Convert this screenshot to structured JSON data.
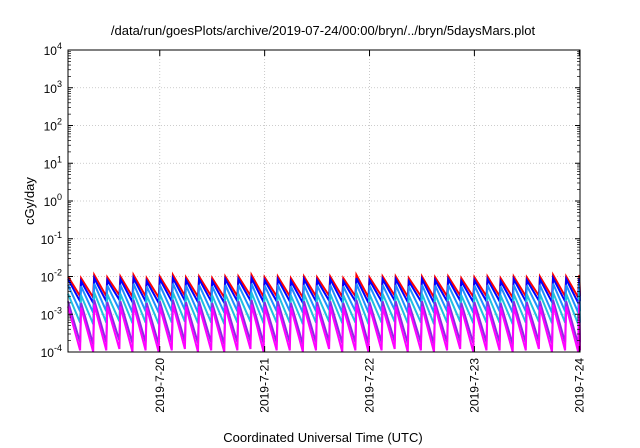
{
  "chart_data": {
    "type": "line",
    "title": "/data/run/goesPlots/archive/2019-07-24/00:00/bryn/../bryn/5daysMars.plot",
    "xlabel": "Coordinated Universal Time (UTC)",
    "ylabel": "cGy/day",
    "yscale": "log",
    "ylim": [
      0.0001,
      10000
    ],
    "xlim": [
      "2019-07-19 03:00",
      "2019-07-24 00:10"
    ],
    "grid": true,
    "legend": "none",
    "x_ticks": [
      "2019-7-20",
      "2019-7-21",
      "2019-7-22",
      "2019-7-23",
      "2019-7-24"
    ],
    "y_ticks": [
      {
        "base": "10",
        "exp": "-4"
      },
      {
        "base": "10",
        "exp": "-3"
      },
      {
        "base": "10",
        "exp": "-2"
      },
      {
        "base": "10",
        "exp": "-1"
      },
      {
        "base": "10",
        "exp": "0"
      },
      {
        "base": "10",
        "exp": "1"
      },
      {
        "base": "10",
        "exp": "2"
      },
      {
        "base": "10",
        "exp": "3"
      },
      {
        "base": "10",
        "exp": "4"
      }
    ],
    "sawtooth_period_hours": 3,
    "series": [
      {
        "color": "#ff0000",
        "peaks": [
          0.01,
          0.009,
          0.011,
          0.0095,
          0.01,
          0.011,
          0.009,
          0.01,
          0.011,
          0.0095,
          0.01,
          0.009,
          0.01,
          0.01,
          0.011,
          0.0095,
          0.01,
          0.009,
          0.01,
          0.0095,
          0.01,
          0.009,
          0.011,
          0.0095,
          0.01,
          0.01,
          0.009,
          0.01,
          0.0095,
          0.01,
          0.009,
          0.0095,
          0.01,
          0.009,
          0.01,
          0.0095,
          0.01,
          0.011,
          0.01,
          0.011
        ],
        "troughs": [
          0.003,
          0.0028,
          0.003,
          0.0032,
          0.0029,
          0.003,
          0.0028,
          0.003,
          0.0031,
          0.0029,
          0.003,
          0.0028,
          0.003,
          0.0031,
          0.0029,
          0.003,
          0.003,
          0.0028,
          0.003,
          0.0031,
          0.0029,
          0.003,
          0.0028,
          0.003,
          0.0031,
          0.0029,
          0.003,
          0.0028,
          0.003,
          0.0031,
          0.0029,
          0.003,
          0.003,
          0.0028,
          0.003,
          0.0031,
          0.0029,
          0.003,
          0.0028,
          0.003
        ]
      },
      {
        "color": "#0000ff",
        "peaks": [
          0.0085,
          0.0075,
          0.009,
          0.008,
          0.0085,
          0.009,
          0.0075,
          0.0085,
          0.009,
          0.008,
          0.0085,
          0.0075,
          0.0085,
          0.0085,
          0.009,
          0.008,
          0.0085,
          0.0075,
          0.0085,
          0.008,
          0.0085,
          0.0075,
          0.009,
          0.008,
          0.0085,
          0.0085,
          0.0075,
          0.0085,
          0.008,
          0.0085,
          0.0075,
          0.008,
          0.0085,
          0.0075,
          0.0085,
          0.008,
          0.0085,
          0.009,
          0.0085,
          0.009
        ],
        "troughs": [
          0.0022,
          0.002,
          0.0022,
          0.0024,
          0.0021,
          0.0022,
          0.002,
          0.0022,
          0.0023,
          0.0021,
          0.0022,
          0.002,
          0.0022,
          0.0023,
          0.0021,
          0.0022,
          0.0022,
          0.002,
          0.0022,
          0.0023,
          0.0021,
          0.0022,
          0.002,
          0.0022,
          0.0023,
          0.0021,
          0.0022,
          0.002,
          0.0022,
          0.0023,
          0.0021,
          0.0022,
          0.0022,
          0.002,
          0.0022,
          0.0023,
          0.0021,
          0.0022,
          0.002,
          0.0022
        ]
      },
      {
        "color": "#1e90ff",
        "peaks": [
          0.006,
          0.0055,
          0.0065,
          0.0058,
          0.006,
          0.0065,
          0.0055,
          0.006,
          0.0065,
          0.0058,
          0.006,
          0.0055,
          0.006,
          0.006,
          0.0065,
          0.0058,
          0.006,
          0.0055,
          0.006,
          0.0058,
          0.006,
          0.0055,
          0.0065,
          0.0058,
          0.006,
          0.006,
          0.0055,
          0.006,
          0.0058,
          0.006,
          0.0055,
          0.0058,
          0.006,
          0.0055,
          0.006,
          0.0058,
          0.006,
          0.0065,
          0.006,
          0.0065
        ],
        "troughs": [
          0.0012,
          0.0011,
          0.0012,
          0.0013,
          0.0011,
          0.0012,
          0.0011,
          0.0012,
          0.0013,
          0.0011,
          0.0012,
          0.0011,
          0.0012,
          0.0013,
          0.0011,
          0.0012,
          0.0012,
          0.0011,
          0.0012,
          0.0013,
          0.0011,
          0.0012,
          0.0011,
          0.0012,
          0.0013,
          0.0011,
          0.0012,
          0.0011,
          0.0012,
          0.0013,
          0.0011,
          0.0012,
          0.0012,
          0.0011,
          0.0012,
          0.0013,
          0.0011,
          0.0012,
          0.0011,
          0.0012
        ]
      },
      {
        "color": "#20c0e0",
        "peaks": [
          0.0035,
          0.0032,
          0.0038,
          0.0034,
          0.0035,
          0.0038,
          0.0032,
          0.0035,
          0.0038,
          0.0034,
          0.0035,
          0.0032,
          0.0035,
          0.0035,
          0.0038,
          0.0034,
          0.0035,
          0.0032,
          0.0035,
          0.0034,
          0.0035,
          0.0032,
          0.0038,
          0.0034,
          0.0035,
          0.0035,
          0.0032,
          0.0035,
          0.0034,
          0.0035,
          0.0032,
          0.0034,
          0.0035,
          0.0032,
          0.0035,
          0.0034,
          0.0035,
          0.0038,
          0.0035,
          0.0038
        ],
        "troughs": [
          0.0006,
          0.00055,
          0.0006,
          0.00065,
          0.00058,
          0.0006,
          0.00055,
          0.0006,
          0.00063,
          0.00058,
          0.0006,
          0.00055,
          0.0006,
          0.00063,
          0.00058,
          0.0006,
          0.0006,
          0.00055,
          0.0006,
          0.00063,
          0.00058,
          0.0006,
          0.00055,
          0.0006,
          0.00063,
          0.00058,
          0.0006,
          0.00055,
          0.0006,
          0.00063,
          0.00058,
          0.0006,
          0.0006,
          0.00055,
          0.0006,
          0.00063,
          0.00058,
          0.0006,
          0.00055,
          0.0006
        ]
      },
      {
        "color": "#8a2be2",
        "peaks": [
          0.0022,
          0.002,
          0.0024,
          0.0021,
          0.0022,
          0.0024,
          0.002,
          0.0022,
          0.0024,
          0.0021,
          0.0022,
          0.002,
          0.0022,
          0.0022,
          0.0024,
          0.0021,
          0.0022,
          0.002,
          0.0022,
          0.0021,
          0.0022,
          0.002,
          0.0024,
          0.0021,
          0.0022,
          0.0022,
          0.002,
          0.0022,
          0.0021,
          0.0022,
          0.002,
          0.0021,
          0.0022,
          0.002,
          0.0022,
          0.0021,
          0.0022,
          0.0024,
          0.0022,
          0.0024
        ],
        "troughs": [
          0.00018,
          0.00016,
          0.00018,
          0.0002,
          0.00017,
          0.00018,
          0.00016,
          0.00018,
          0.00019,
          0.00017,
          0.00018,
          0.00016,
          0.00018,
          0.00019,
          0.00017,
          0.00018,
          0.00018,
          0.00016,
          0.00018,
          0.00019,
          0.00017,
          0.00018,
          0.00016,
          0.00018,
          0.00019,
          0.00017,
          0.00018,
          0.00016,
          0.00018,
          0.00019,
          0.00017,
          0.00018,
          0.00018,
          0.00016,
          0.00018,
          0.00019,
          0.00017,
          0.00018,
          0.00016,
          0.00018
        ]
      },
      {
        "color": "#ff00ff",
        "peaks": [
          0.0016,
          0.0015,
          0.0018,
          0.0016,
          0.0016,
          0.0018,
          0.0015,
          0.0016,
          0.0018,
          0.0016,
          0.0016,
          0.0015,
          0.0016,
          0.0016,
          0.0018,
          0.0016,
          0.0016,
          0.0015,
          0.0016,
          0.0016,
          0.0016,
          0.0015,
          0.0018,
          0.0016,
          0.0016,
          0.0016,
          0.0015,
          0.0016,
          0.0016,
          0.0016,
          0.0015,
          0.0016,
          0.0016,
          0.0015,
          0.0016,
          0.0016,
          0.0016,
          0.0018,
          0.0016,
          0.0018
        ],
        "troughs": [
          0.00011,
          0.0001,
          0.00011,
          0.00012,
          0.0001,
          0.00011,
          0.0001,
          0.00011,
          0.00012,
          0.0001,
          0.00011,
          0.0001,
          0.00011,
          0.00012,
          0.0001,
          0.00011,
          0.00011,
          0.0001,
          0.00011,
          0.00012,
          0.0001,
          0.00011,
          0.0001,
          0.00011,
          0.00012,
          0.0001,
          0.00011,
          0.0001,
          0.00011,
          0.00012,
          0.0001,
          0.00011,
          0.00011,
          0.0001,
          0.00011,
          0.00012,
          0.0001,
          0.00011,
          0.0001,
          0.00011
        ]
      }
    ]
  }
}
